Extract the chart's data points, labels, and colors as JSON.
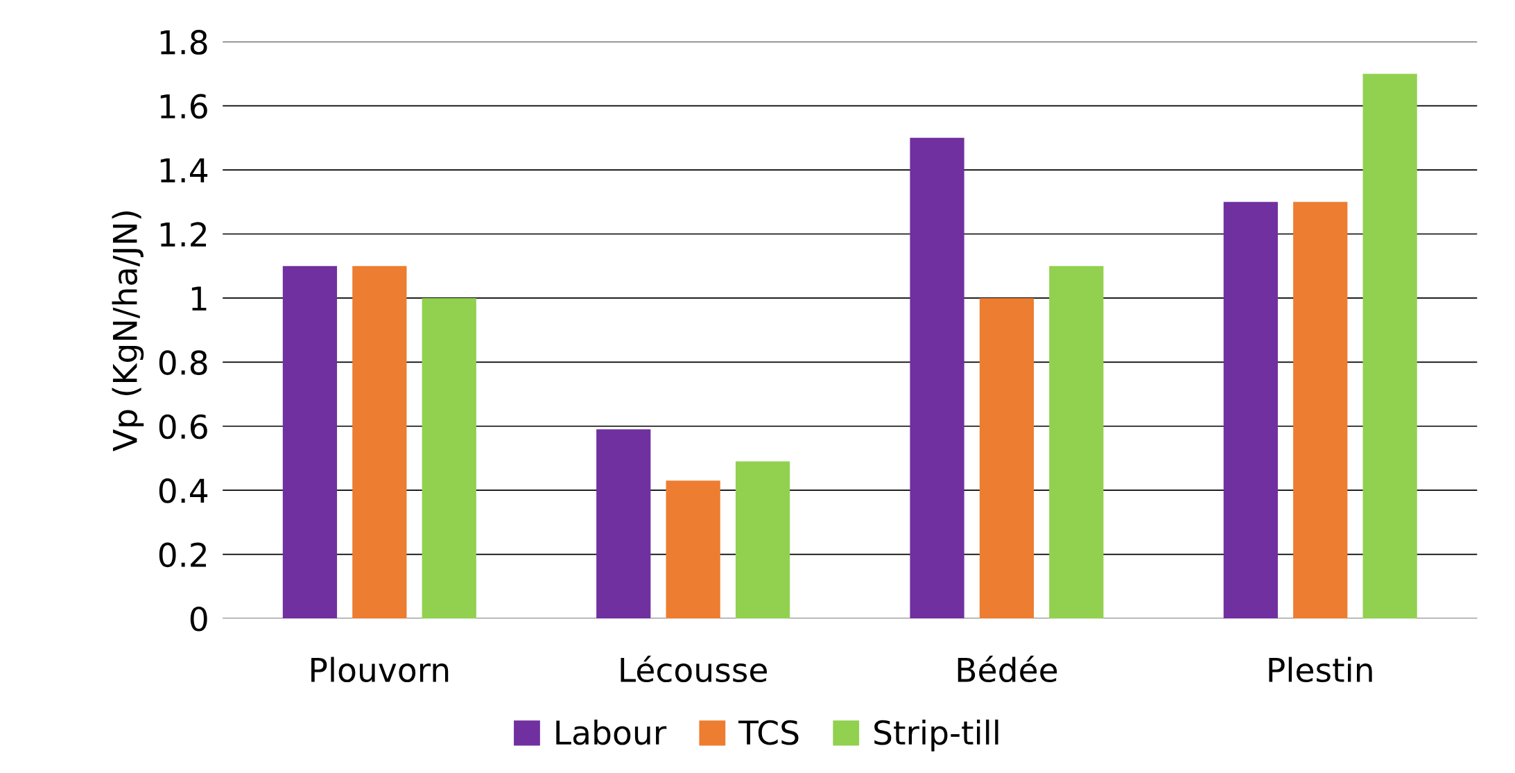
{
  "chart_data": {
    "type": "bar",
    "ylabel": "Vp (KgN/ha/JN)",
    "categories": [
      "Plouvorn",
      "Lécousse",
      "Bédée",
      "Plestin"
    ],
    "series": [
      {
        "name": "Labour",
        "color": "#7030a0",
        "values": [
          1.1,
          0.59,
          1.5,
          1.3
        ]
      },
      {
        "name": "TCS",
        "color": "#ed7d31",
        "values": [
          1.1,
          0.43,
          1.0,
          1.3
        ]
      },
      {
        "name": "Strip-till",
        "color": "#92d050",
        "values": [
          1.0,
          0.49,
          1.1,
          1.7
        ]
      }
    ],
    "ylim": [
      0,
      1.8
    ],
    "yticks": [
      0,
      0.2,
      0.4,
      0.6,
      0.8,
      1,
      1.2,
      1.4,
      1.6,
      1.8
    ],
    "grid": "y",
    "legend": "bottom"
  }
}
